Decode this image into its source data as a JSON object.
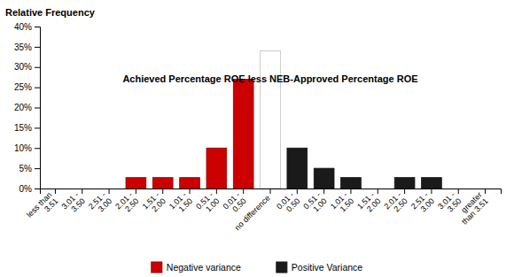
{
  "chart_data": {
    "type": "bar",
    "categories": [
      "less than\n3.51",
      "3.01 -\n3.50",
      "2.51 -\n3.00",
      "2.01 -\n2.50",
      "1.51 -\n2.00",
      "1.01 -\n1.50",
      "0.51 -\n1.00",
      "0.01 -\n0.50",
      "no difference",
      "0.01 -\n0.50",
      "0.51 -\n1.00",
      "1.01 -\n1.50",
      "1.51 -\n2.00",
      "2.01 -\n2.50",
      "2.51 -\n3.00",
      "3.01 -\n3.50",
      "greater\nthan 3.51"
    ],
    "series": [
      {
        "name": "Negative variance",
        "color": "#cc0000",
        "values": [
          0,
          0,
          0,
          2.7,
          2.7,
          2.7,
          10,
          27,
          null,
          null,
          null,
          null,
          null,
          null,
          null,
          null,
          null
        ]
      },
      {
        "color": "white",
        "values": [
          null,
          null,
          null,
          null,
          null,
          null,
          null,
          null,
          34,
          null,
          null,
          null,
          null,
          null,
          null,
          null,
          null
        ]
      },
      {
        "name": "Positive Variance",
        "color": "#1a1a1a",
        "values": [
          null,
          null,
          null,
          null,
          null,
          null,
          null,
          null,
          null,
          10,
          5,
          2.7,
          0,
          2.7,
          2.7,
          0,
          0
        ]
      }
    ],
    "stacked": true,
    "ylabel": "Relative Frequency",
    "xlabel": "Achieved Percentage ROE less NEB-Approved Percentage ROE",
    "ylim": [
      0,
      40
    ],
    "yticks": [
      {
        "value": 0,
        "label": "0%"
      },
      {
        "value": 5,
        "label": "5%"
      },
      {
        "value": 10,
        "label": "10%"
      },
      {
        "value": 15,
        "label": "15%"
      },
      {
        "value": 20,
        "label": "20%"
      },
      {
        "value": 25,
        "label": "25%"
      },
      {
        "value": 30,
        "label": "30%"
      },
      {
        "value": 35,
        "label": "35%"
      },
      {
        "value": 40,
        "label": "40%"
      }
    ],
    "grid": false,
    "legend": "bottom"
  }
}
